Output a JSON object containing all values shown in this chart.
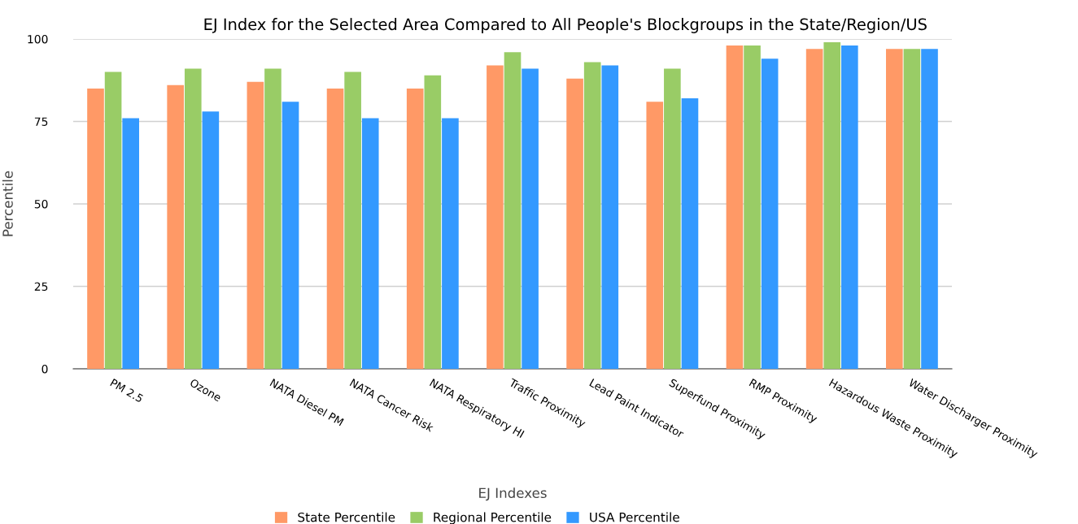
{
  "chart_data": {
    "type": "bar",
    "title": "EJ Index for the Selected Area Compared to All People's Blockgroups in the State/Region/US",
    "xlabel": "EJ Indexes",
    "ylabel": "Percentile",
    "categories": [
      "PM 2.5",
      "Ozone",
      "NATA Diesel PM",
      "NATA Cancer Risk",
      "NATA Respiratory HI",
      "Traffic Proximity",
      "Lead Paint Indicator",
      "Superfund Proximity",
      "RMP Proximity",
      "Hazardous Waste Proximity",
      "Water Discharger Proximity"
    ],
    "series": [
      {
        "name": "State Percentile",
        "color": "#ff9966",
        "values": [
          85,
          86,
          87,
          85,
          85,
          92,
          88,
          81,
          98,
          97,
          97
        ]
      },
      {
        "name": "Regional Percentile",
        "color": "#99cc66",
        "values": [
          90,
          91,
          91,
          90,
          89,
          96,
          93,
          91,
          98,
          99,
          97
        ]
      },
      {
        "name": "USA Percentile",
        "color": "#3399ff",
        "values": [
          76,
          78,
          81,
          76,
          76,
          91,
          92,
          82,
          94,
          98,
          97
        ]
      }
    ],
    "ylim": [
      0,
      100
    ],
    "yticks": [
      0,
      25,
      50,
      75,
      100
    ],
    "grid": "y",
    "legend": "bottom"
  }
}
